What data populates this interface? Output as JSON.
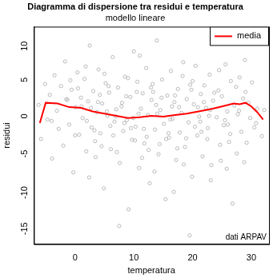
{
  "chart_data": {
    "type": "scatter",
    "title": "Diagramma di dispersione tra residui e temperatura",
    "subtitle": "modello lineare",
    "x_label": "temperatura",
    "y_label": "residui",
    "annotation": "dati ARPAV",
    "xlim": [
      -7,
      33
    ],
    "xticks": [
      0,
      10,
      20,
      30
    ],
    "ylim": [
      -18,
      12
    ],
    "yticks": [
      -15,
      -10,
      -5,
      0,
      5,
      10
    ],
    "grid": false,
    "legend": "topright",
    "series": [
      {
        "type": "scatter",
        "color": "#aaaaaa",
        "marker": "circle",
        "x": [
          -6.2,
          -5.8,
          -5.1,
          -4.7,
          -4.3,
          -3.9,
          -3.5,
          -3.1,
          -2.8,
          -2.4,
          -2.0,
          -1.7,
          -1.3,
          -1.0,
          -0.6,
          -0.3,
          0.1,
          0.4,
          0.7,
          1.0,
          1.3,
          1.6,
          1.9,
          2.2,
          2.5,
          2.8,
          3.1,
          3.4,
          3.7,
          4.0,
          4.3,
          4.6,
          4.9,
          5.2,
          5.5,
          5.8,
          6.1,
          6.4,
          6.7,
          7.0,
          7.3,
          7.6,
          7.9,
          8.2,
          8.5,
          8.8,
          9.1,
          9.4,
          9.7,
          10.0,
          10.3,
          10.6,
          10.9,
          11.2,
          11.5,
          11.8,
          12.1,
          12.4,
          12.7,
          13.0,
          13.3,
          13.6,
          13.9,
          14.2,
          14.5,
          14.8,
          15.1,
          15.4,
          15.7,
          16.0,
          16.3,
          16.6,
          16.9,
          17.2,
          17.5,
          17.8,
          18.1,
          18.4,
          18.7,
          19.0,
          19.3,
          19.6,
          19.9,
          20.2,
          20.5,
          20.8,
          21.1,
          21.4,
          21.7,
          22.0,
          22.3,
          22.6,
          22.9,
          23.2,
          23.5,
          23.8,
          24.1,
          24.4,
          24.7,
          25.0,
          25.3,
          25.6,
          25.9,
          26.2,
          26.5,
          26.8,
          27.1,
          27.4,
          27.7,
          28.0,
          28.3,
          28.6,
          28.9,
          29.2,
          29.5,
          29.8,
          30.1,
          30.5,
          31.0,
          31.8,
          0.5,
          2.0,
          3.5,
          5.0,
          6.5,
          8.0,
          9.5,
          11.0,
          12.5,
          14.0,
          15.5,
          17.0,
          18.5,
          20.0,
          21.5,
          23.0,
          24.5,
          26.0,
          27.5,
          29.0,
          -4.0,
          -1.5,
          1.8,
          4.5,
          7.5,
          10.5,
          13.5,
          16.5,
          19.5,
          22.5,
          1.1,
          3.3,
          5.7,
          8.4,
          10.8,
          12.2,
          14.7,
          17.4,
          20.9,
          24.8,
          0.0,
          2.7,
          6.0,
          9.0,
          11.4,
          13.8,
          16.2,
          18.9,
          21.9,
          26.4,
          -0.8,
          4.2,
          7.1,
          9.9,
          12.9,
          15.9,
          18.3,
          21.3,
          23.7,
          27.9,
          2.4,
          5.4,
          8.7,
          11.7,
          14.4,
          17.7,
          20.4,
          23.1,
          25.5,
          30.8,
          3.9,
          6.9,
          10.2,
          13.2,
          16.8,
          19.8,
          22.8,
          25.8,
          28.8,
          32.2
        ],
        "values": [
          1.2,
          -3.5,
          4.1,
          -0.8,
          2.6,
          -6.2,
          5.3,
          0.4,
          -2.1,
          3.8,
          -4.4,
          7.2,
          1.9,
          -1.5,
          3.3,
          -8.1,
          0.9,
          5.7,
          -2.9,
          2.2,
          -0.6,
          4.8,
          -5.2,
          1.7,
          9.4,
          -1.9,
          3.1,
          -3.8,
          0.2,
          6.1,
          -2.7,
          1.4,
          -10.3,
          4.2,
          -0.3,
          2.9,
          -4.9,
          7.8,
          -1.1,
          0.6,
          3.6,
          -6.8,
          1.0,
          -2.4,
          5.1,
          -0.9,
          -13.2,
          2.3,
          -3.6,
          8.6,
          -1.8,
          4.4,
          -7.5,
          0.7,
          2.8,
          -4.1,
          6.3,
          -0.2,
          -9.6,
          1.9,
          3.0,
          -2.2,
          10.1,
          -5.6,
          0.5,
          4.7,
          -1.4,
          -11.8,
          2.5,
          -3.3,
          5.9,
          -0.7,
          1.6,
          -6.4,
          3.4,
          -2.6,
          0.1,
          7.1,
          -4.6,
          2.0,
          -1.2,
          4.0,
          -8.7,
          1.3,
          6.6,
          -3.0,
          -0.4,
          2.7,
          -5.9,
          3.9,
          0.8,
          -2.0,
          5.4,
          -7.1,
          1.8,
          9.9,
          -0.5,
          3.2,
          -4.3,
          2.4,
          -1.6,
          6.8,
          0.3,
          -3.9,
          4.5,
          -12.4,
          1.1,
          3.7,
          -0.1,
          5.0,
          -2.5,
          2.1,
          7.4,
          -4.0,
          1.5,
          -0.6,
          4.3,
          -1.9,
          0.7,
          -3.1,
          3.5,
          -1.0,
          -6.0,
          5.5,
          -3.0,
          1.5,
          -2.0,
          8.0,
          -5.0,
          0.0,
          -3.5,
          2.5,
          -7.0,
          4.5,
          -2.5,
          0.5,
          6.0,
          -1.5,
          -5.5,
          3.0,
          -1.0,
          2.0,
          6.5,
          -4.5,
          -15.5,
          3.0,
          -8.0,
          1.0,
          -16.8,
          -3.5,
          1.0,
          -2.3,
          3.8,
          -1.3,
          0.0,
          -3.2,
          2.2,
          -4.8,
          0.9,
          -6.5,
          -3.0,
          0.8,
          -1.7,
          4.9,
          -6.1,
          1.2,
          -0.8,
          -3.4,
          1.6,
          -2.8,
          4.6,
          2.6,
          -5.3,
          -0.6,
          3.6,
          -2.7,
          5.2,
          -1.1,
          2.9,
          0.4,
          -8.8,
          0.3,
          2.4,
          -2.1,
          -4.2,
          0.9,
          -1.8,
          -9.2,
          -0.9,
          -1.3,
          1.6,
          -0.4,
          -3.7,
          4.1,
          -10.8,
          3.3,
          -0.3,
          -7.6,
          -6.7,
          0.5
        ]
      },
      {
        "name": "media",
        "type": "line",
        "color": "#ff0000",
        "line_style": "solid",
        "x": [
          -6,
          -5,
          -3,
          -1,
          1,
          3,
          5,
          7,
          9,
          11,
          13,
          15,
          17,
          19,
          21,
          23,
          25,
          27,
          28,
          29,
          30,
          31,
          32
        ],
        "values": [
          -1.3,
          1.5,
          1.4,
          0.9,
          0.8,
          0.3,
          0,
          -0.3,
          -0.6,
          -0.5,
          -0.3,
          -0.4,
          -0.2,
          0,
          0.3,
          0.6,
          1.0,
          1.4,
          1.3,
          1.5,
          1.0,
          0.2,
          -0.8
        ]
      }
    ]
  }
}
